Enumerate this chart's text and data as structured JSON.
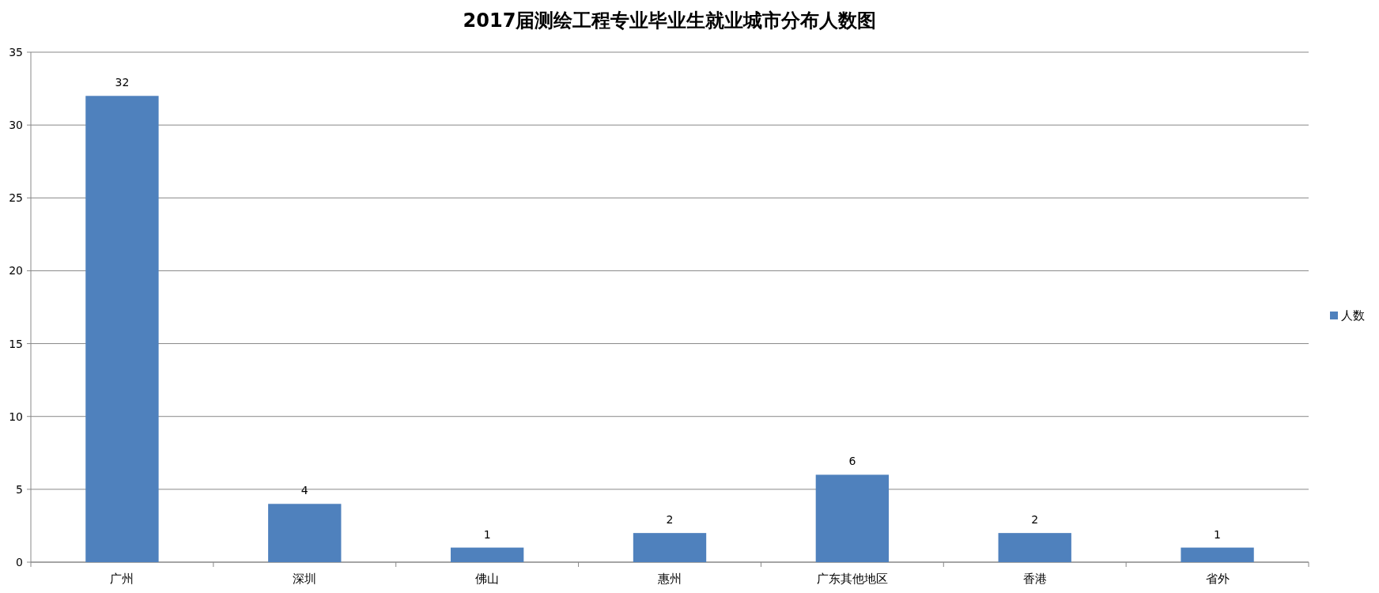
{
  "chart_data": {
    "type": "bar",
    "title": "2017届测绘工程专业毕业生就业城市分布人数图",
    "categories": [
      "广州",
      "深圳",
      "佛山",
      "惠州",
      "广东其他地区",
      "香港",
      "省外"
    ],
    "series": [
      {
        "name": "人数",
        "color": "#4f81bd",
        "values": [
          32,
          4,
          1,
          2,
          6,
          2,
          1
        ]
      }
    ],
    "ylim": [
      0,
      35
    ],
    "yticks": [
      0,
      5,
      10,
      15,
      20,
      25,
      30,
      35
    ],
    "grid": "y",
    "legend": "right",
    "data_labels": true
  }
}
